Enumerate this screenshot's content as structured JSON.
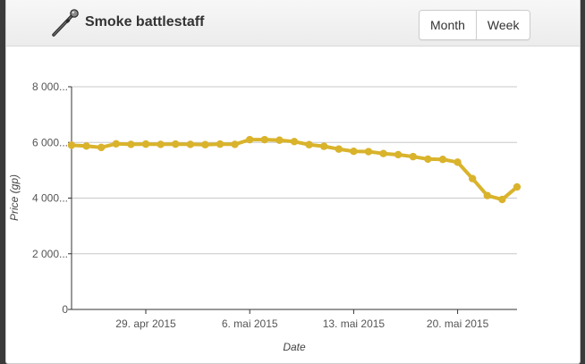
{
  "header": {
    "item_name": "Smoke battlestaff",
    "icon": "battlestaff-icon",
    "buttons": {
      "month": "Month",
      "week": "Week"
    }
  },
  "colors": {
    "series": "#d9b32b",
    "grid": "#c8c8c8",
    "axis": "#333333",
    "text": "#555555"
  },
  "chart_data": {
    "type": "line",
    "title": "",
    "xlabel": "Date",
    "ylabel": "Price (gp)",
    "ylim": [
      0,
      8000
    ],
    "yticks": [
      {
        "value": 0,
        "label": "0"
      },
      {
        "value": 2000,
        "label": "2 000..."
      },
      {
        "value": 4000,
        "label": "4 000..."
      },
      {
        "value": 6000,
        "label": "6 000..."
      },
      {
        "value": 8000,
        "label": "8 000..."
      }
    ],
    "xlim": [
      0,
      30
    ],
    "xticks": [
      {
        "value": 5,
        "label": "29. apr 2015"
      },
      {
        "value": 12,
        "label": "6. mai 2015"
      },
      {
        "value": 19,
        "label": "13. mai 2015"
      },
      {
        "value": 26,
        "label": "20. mai 2015"
      }
    ],
    "series": [
      {
        "name": "Price",
        "x": [
          0,
          1,
          2,
          3,
          4,
          5,
          6,
          7,
          8,
          9,
          10,
          11,
          12,
          13,
          14,
          15,
          16,
          17,
          18,
          19,
          20,
          21,
          22,
          23,
          24,
          25,
          26,
          27,
          28,
          29,
          30
        ],
        "values": [
          5900,
          5870,
          5820,
          5950,
          5930,
          5940,
          5930,
          5940,
          5930,
          5920,
          5940,
          5930,
          6100,
          6100,
          6080,
          6030,
          5920,
          5860,
          5760,
          5680,
          5670,
          5600,
          5560,
          5490,
          5400,
          5390,
          5290,
          4700,
          4090,
          3950,
          4400
        ]
      }
    ]
  }
}
